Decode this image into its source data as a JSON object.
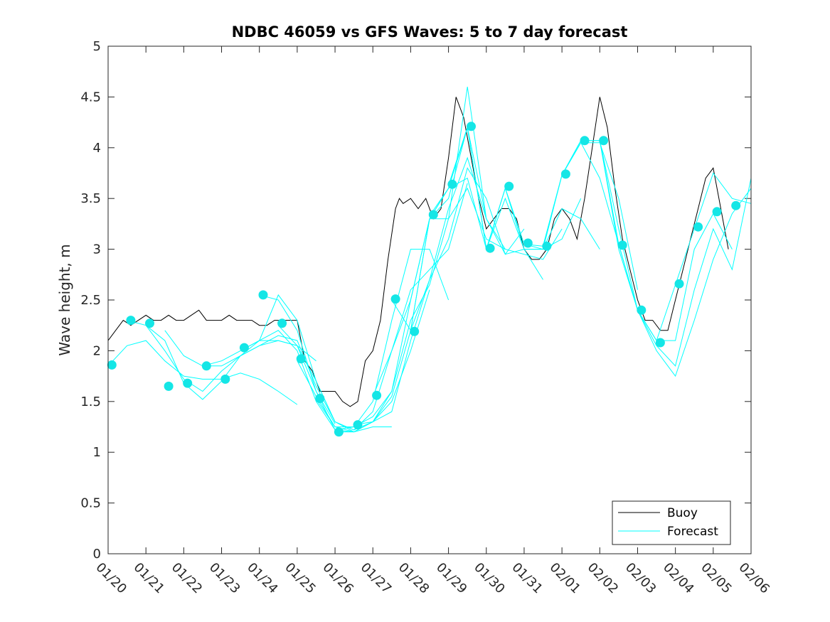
{
  "chart_data": {
    "type": "line",
    "title": "NDBC 46059 vs GFS Waves: 5 to 7 day forecast",
    "xlabel": "",
    "ylabel": "Wave height, m",
    "xlim": [
      0,
      17
    ],
    "ylim": [
      0,
      5
    ],
    "x_tick_labels": [
      "01/20",
      "01/21",
      "01/22",
      "01/23",
      "01/24",
      "01/25",
      "01/26",
      "01/27",
      "01/28",
      "01/29",
      "01/30",
      "01/31",
      "02/01",
      "02/02",
      "02/03",
      "02/04",
      "02/05",
      "02/06"
    ],
    "y_ticks": [
      0,
      0.5,
      1,
      1.5,
      2,
      2.5,
      3,
      3.5,
      4,
      4.5,
      5
    ],
    "y_tick_labels": [
      "0",
      "0.5",
      "1",
      "1.5",
      "2",
      "2.5",
      "3",
      "3.5",
      "4",
      "4.5",
      "5"
    ],
    "legend": {
      "position": "bottom-right",
      "entries": [
        "Buoy",
        "Forecast"
      ]
    },
    "colors": {
      "buoy": "#000000",
      "forecast": "#00ffff",
      "marker": "#14e6e6"
    },
    "buoy": {
      "name": "Buoy",
      "x": [
        0,
        0.2,
        0.4,
        0.6,
        0.8,
        1.0,
        1.2,
        1.4,
        1.6,
        1.8,
        2.0,
        2.2,
        2.4,
        2.6,
        2.8,
        3.0,
        3.2,
        3.4,
        3.6,
        3.8,
        4.0,
        4.2,
        4.4,
        4.6,
        4.8,
        5.0,
        5.2,
        5.4,
        5.6,
        5.8,
        6.0,
        6.2,
        6.4,
        6.6,
        6.8,
        7.0,
        7.2,
        7.4,
        7.6,
        7.7,
        7.8,
        8.0,
        8.2,
        8.4,
        8.6,
        8.8,
        9.0,
        9.2,
        9.4,
        9.6,
        9.8,
        10.0,
        10.2,
        10.4,
        10.6,
        10.8,
        11.0,
        11.2,
        11.4,
        11.6,
        11.8,
        12.0,
        12.2,
        12.4,
        12.6,
        12.8,
        13.0,
        13.2,
        13.4,
        13.6,
        13.8,
        14.0,
        14.2,
        14.4,
        14.6,
        14.8,
        15.0,
        15.2,
        15.4,
        15.6,
        15.8,
        16.0,
        16.2,
        16.4
      ],
      "values": [
        2.1,
        2.2,
        2.3,
        2.25,
        2.3,
        2.35,
        2.3,
        2.3,
        2.35,
        2.3,
        2.3,
        2.35,
        2.4,
        2.3,
        2.3,
        2.3,
        2.35,
        2.3,
        2.3,
        2.3,
        2.25,
        2.25,
        2.3,
        2.3,
        2.3,
        2.3,
        1.9,
        1.8,
        1.6,
        1.6,
        1.6,
        1.5,
        1.45,
        1.5,
        1.9,
        2.0,
        2.3,
        2.9,
        3.4,
        3.5,
        3.45,
        3.5,
        3.4,
        3.5,
        3.3,
        3.4,
        3.9,
        4.5,
        4.3,
        3.9,
        3.5,
        3.2,
        3.3,
        3.4,
        3.4,
        3.3,
        3.0,
        2.9,
        2.9,
        3.0,
        3.3,
        3.4,
        3.3,
        3.1,
        3.5,
        4.0,
        4.5,
        4.2,
        3.6,
        3.1,
        2.8,
        2.5,
        2.3,
        2.3,
        2.2,
        2.2,
        2.5,
        2.8,
        3.1,
        3.4,
        3.7,
        3.8,
        3.4,
        3.0
      ]
    },
    "forecast": {
      "name": "Forecast",
      "segments": [
        {
          "x": [
            0,
            0.5,
            1.0,
            1.5,
            2.0,
            2.5,
            3.0,
            3.5,
            4.0,
            4.5,
            5.0
          ],
          "values": [
            1.85,
            2.05,
            2.1,
            1.9,
            1.75,
            1.72,
            1.72,
            1.78,
            1.72,
            1.6,
            1.47
          ]
        },
        {
          "x": [
            0.5,
            1.0,
            1.5,
            2.0,
            2.5,
            3.0,
            3.5,
            4.0,
            4.5,
            5.0,
            5.5
          ],
          "values": [
            2.3,
            2.25,
            2.0,
            1.72,
            1.6,
            1.8,
            1.95,
            2.05,
            2.1,
            2.05,
            1.9
          ]
        },
        {
          "x": [
            1.0,
            1.5,
            2.0,
            2.5,
            3.0,
            3.5,
            4.0,
            4.5,
            5.0,
            5.5,
            6.0
          ],
          "values": [
            2.25,
            2.1,
            1.68,
            1.52,
            1.7,
            1.95,
            2.1,
            2.1,
            2.05,
            1.6,
            1.28
          ]
        },
        {
          "x": [
            1.5,
            2.0,
            2.5,
            3.0,
            3.5,
            4.0,
            4.5,
            5.0,
            5.5,
            6.0,
            6.5
          ],
          "values": [
            2.2,
            1.95,
            1.85,
            1.85,
            1.95,
            2.05,
            2.15,
            2.1,
            1.65,
            1.3,
            1.2
          ]
        },
        {
          "x": [
            2.5,
            3.0,
            3.5,
            4.0,
            4.5,
            5.0,
            5.5,
            6.0,
            6.5,
            7.0,
            7.5
          ],
          "values": [
            1.85,
            1.9,
            2.0,
            2.1,
            2.2,
            2.0,
            1.5,
            1.22,
            1.2,
            1.25,
            1.25
          ]
        },
        {
          "x": [
            3.5,
            4.0,
            4.5,
            5.0,
            5.5,
            6.0,
            6.5,
            7.0,
            7.5,
            8.0,
            8.5
          ],
          "values": [
            2.0,
            2.1,
            2.55,
            2.3,
            1.7,
            1.3,
            1.22,
            1.3,
            1.5,
            2.0,
            2.6
          ]
        },
        {
          "x": [
            4.0,
            4.5,
            5.0,
            5.5,
            6.0,
            6.5,
            7.0,
            7.5,
            8.0,
            8.5,
            9.0
          ],
          "values": [
            2.55,
            2.5,
            2.2,
            1.6,
            1.22,
            1.25,
            1.5,
            2.3,
            3.0,
            3.0,
            2.5
          ]
        },
        {
          "x": [
            4.5,
            5.0,
            5.5,
            6.0,
            6.5,
            7.0,
            7.5,
            8.0,
            8.5,
            9.0,
            9.5
          ],
          "values": [
            2.25,
            2.05,
            1.7,
            1.3,
            1.22,
            1.4,
            2.0,
            2.6,
            2.8,
            3.0,
            3.65
          ]
        },
        {
          "x": [
            5.0,
            5.5,
            6.0,
            6.5,
            7.0,
            7.5,
            8.0,
            8.5,
            9.0,
            9.5,
            10.0
          ],
          "values": [
            1.9,
            1.55,
            1.25,
            1.2,
            1.3,
            1.6,
            2.3,
            2.65,
            3.3,
            4.6,
            3.3
          ]
        },
        {
          "x": [
            5.5,
            6.0,
            6.5,
            7.0,
            7.5,
            8.0,
            8.5,
            9.0,
            9.5,
            10.0,
            10.5
          ],
          "values": [
            1.52,
            1.25,
            1.25,
            1.35,
            1.6,
            2.5,
            3.3,
            3.5,
            4.2,
            3.3,
            3.0
          ]
        },
        {
          "x": [
            6.0,
            6.5,
            7.0,
            7.5,
            8.0,
            8.5,
            9.0,
            9.5,
            10.0,
            10.5,
            11.0
          ],
          "values": [
            1.2,
            1.2,
            1.3,
            1.4,
            2.1,
            2.7,
            3.4,
            3.9,
            3.3,
            2.95,
            3.2
          ]
        },
        {
          "x": [
            6.5,
            7.0,
            7.5,
            8.0,
            8.5,
            9.0,
            9.5,
            10.0,
            10.5,
            11.0,
            11.5
          ],
          "values": [
            1.27,
            1.3,
            1.55,
            2.2,
            2.7,
            3.1,
            3.8,
            3.5,
            2.95,
            3.0,
            2.7
          ]
        },
        {
          "x": [
            7.0,
            7.5,
            8.0,
            8.5,
            9.0,
            9.5,
            10.0,
            10.5,
            11.0,
            11.5,
            12.0
          ],
          "values": [
            1.55,
            2.0,
            2.5,
            3.3,
            3.3,
            3.6,
            3.1,
            3.0,
            2.95,
            2.9,
            3.2
          ]
        },
        {
          "x": [
            7.5,
            8.0,
            8.5,
            9.0,
            9.5,
            10.0,
            10.5,
            11.0,
            11.5,
            12.0,
            12.5
          ],
          "values": [
            2.5,
            2.2,
            3.3,
            3.6,
            3.7,
            3.0,
            3.5,
            3.0,
            3.0,
            3.1,
            3.5
          ]
        },
        {
          "x": [
            8.0,
            8.5,
            9.0,
            9.5,
            10.0,
            10.5,
            11.0,
            11.5,
            12.0,
            12.5,
            13.0
          ],
          "values": [
            2.2,
            3.3,
            3.6,
            4.2,
            3.0,
            3.6,
            3.0,
            3.0,
            3.4,
            3.3,
            3.0
          ]
        },
        {
          "x": [
            8.5,
            9.0,
            9.5,
            10.0,
            10.5,
            11.0,
            11.5,
            12.0,
            12.5,
            13.0,
            13.5
          ],
          "values": [
            3.33,
            3.6,
            4.2,
            3.0,
            3.6,
            3.05,
            3.0,
            3.73,
            4.05,
            3.7,
            3.05
          ]
        },
        {
          "x": [
            9.0,
            9.5,
            10.0,
            10.5,
            11.0,
            11.5,
            12.0,
            12.5,
            13.0,
            13.5,
            14.0
          ],
          "values": [
            3.63,
            4.2,
            3.0,
            3.6,
            3.05,
            3.03,
            3.73,
            4.05,
            4.05,
            3.5,
            2.6
          ]
        },
        {
          "x": [
            11.5,
            12.0,
            12.5,
            13.0,
            13.5,
            14.0,
            14.5,
            15.0,
            15.5,
            16.0,
            16.5
          ],
          "values": [
            3.03,
            3.73,
            4.07,
            4.07,
            3.0,
            2.4,
            2.1,
            2.1,
            3.0,
            3.35,
            3.0
          ]
        },
        {
          "x": [
            12.0,
            12.5,
            13.0,
            13.5,
            14.0,
            14.5,
            15.0,
            15.5,
            16.0,
            16.5,
            17.0
          ],
          "values": [
            3.73,
            4.07,
            4.07,
            3.05,
            2.4,
            2.1,
            2.65,
            3.2,
            3.75,
            3.5,
            3.45
          ]
        },
        {
          "x": [
            13.0,
            13.5,
            14.0,
            14.5,
            15.0,
            15.5,
            16.0,
            16.5,
            17.0
          ],
          "values": [
            4.07,
            3.2,
            2.4,
            2.0,
            1.75,
            2.3,
            2.9,
            3.35,
            3.6
          ]
        },
        {
          "x": [
            13.5,
            14.0,
            14.5,
            15.0,
            15.5,
            16.0,
            16.5,
            17.0
          ],
          "values": [
            3.05,
            2.4,
            2.05,
            1.85,
            2.6,
            3.2,
            2.8,
            3.7
          ]
        }
      ]
    },
    "forecast_markers": {
      "x": [
        0.1,
        0.6,
        1.1,
        1.6,
        2.1,
        2.6,
        3.1,
        3.6,
        4.1,
        4.6,
        5.1,
        5.6,
        6.1,
        6.6,
        7.1,
        7.6,
        8.1,
        8.6,
        9.1,
        9.6,
        10.1,
        10.6,
        11.1,
        11.6,
        12.1,
        12.6,
        13.1,
        13.6,
        14.1,
        14.6,
        15.1,
        15.6,
        16.1,
        16.6
      ],
      "values": [
        1.86,
        2.3,
        2.27,
        1.65,
        1.68,
        1.85,
        1.72,
        2.03,
        2.55,
        2.27,
        1.92,
        1.53,
        1.2,
        1.27,
        1.56,
        2.51,
        2.19,
        3.34,
        3.64,
        4.21,
        3.01,
        3.62,
        3.06,
        3.03,
        3.74,
        4.07,
        4.07,
        3.04,
        2.4,
        2.08,
        2.66,
        3.22,
        3.37,
        3.43
      ]
    }
  }
}
